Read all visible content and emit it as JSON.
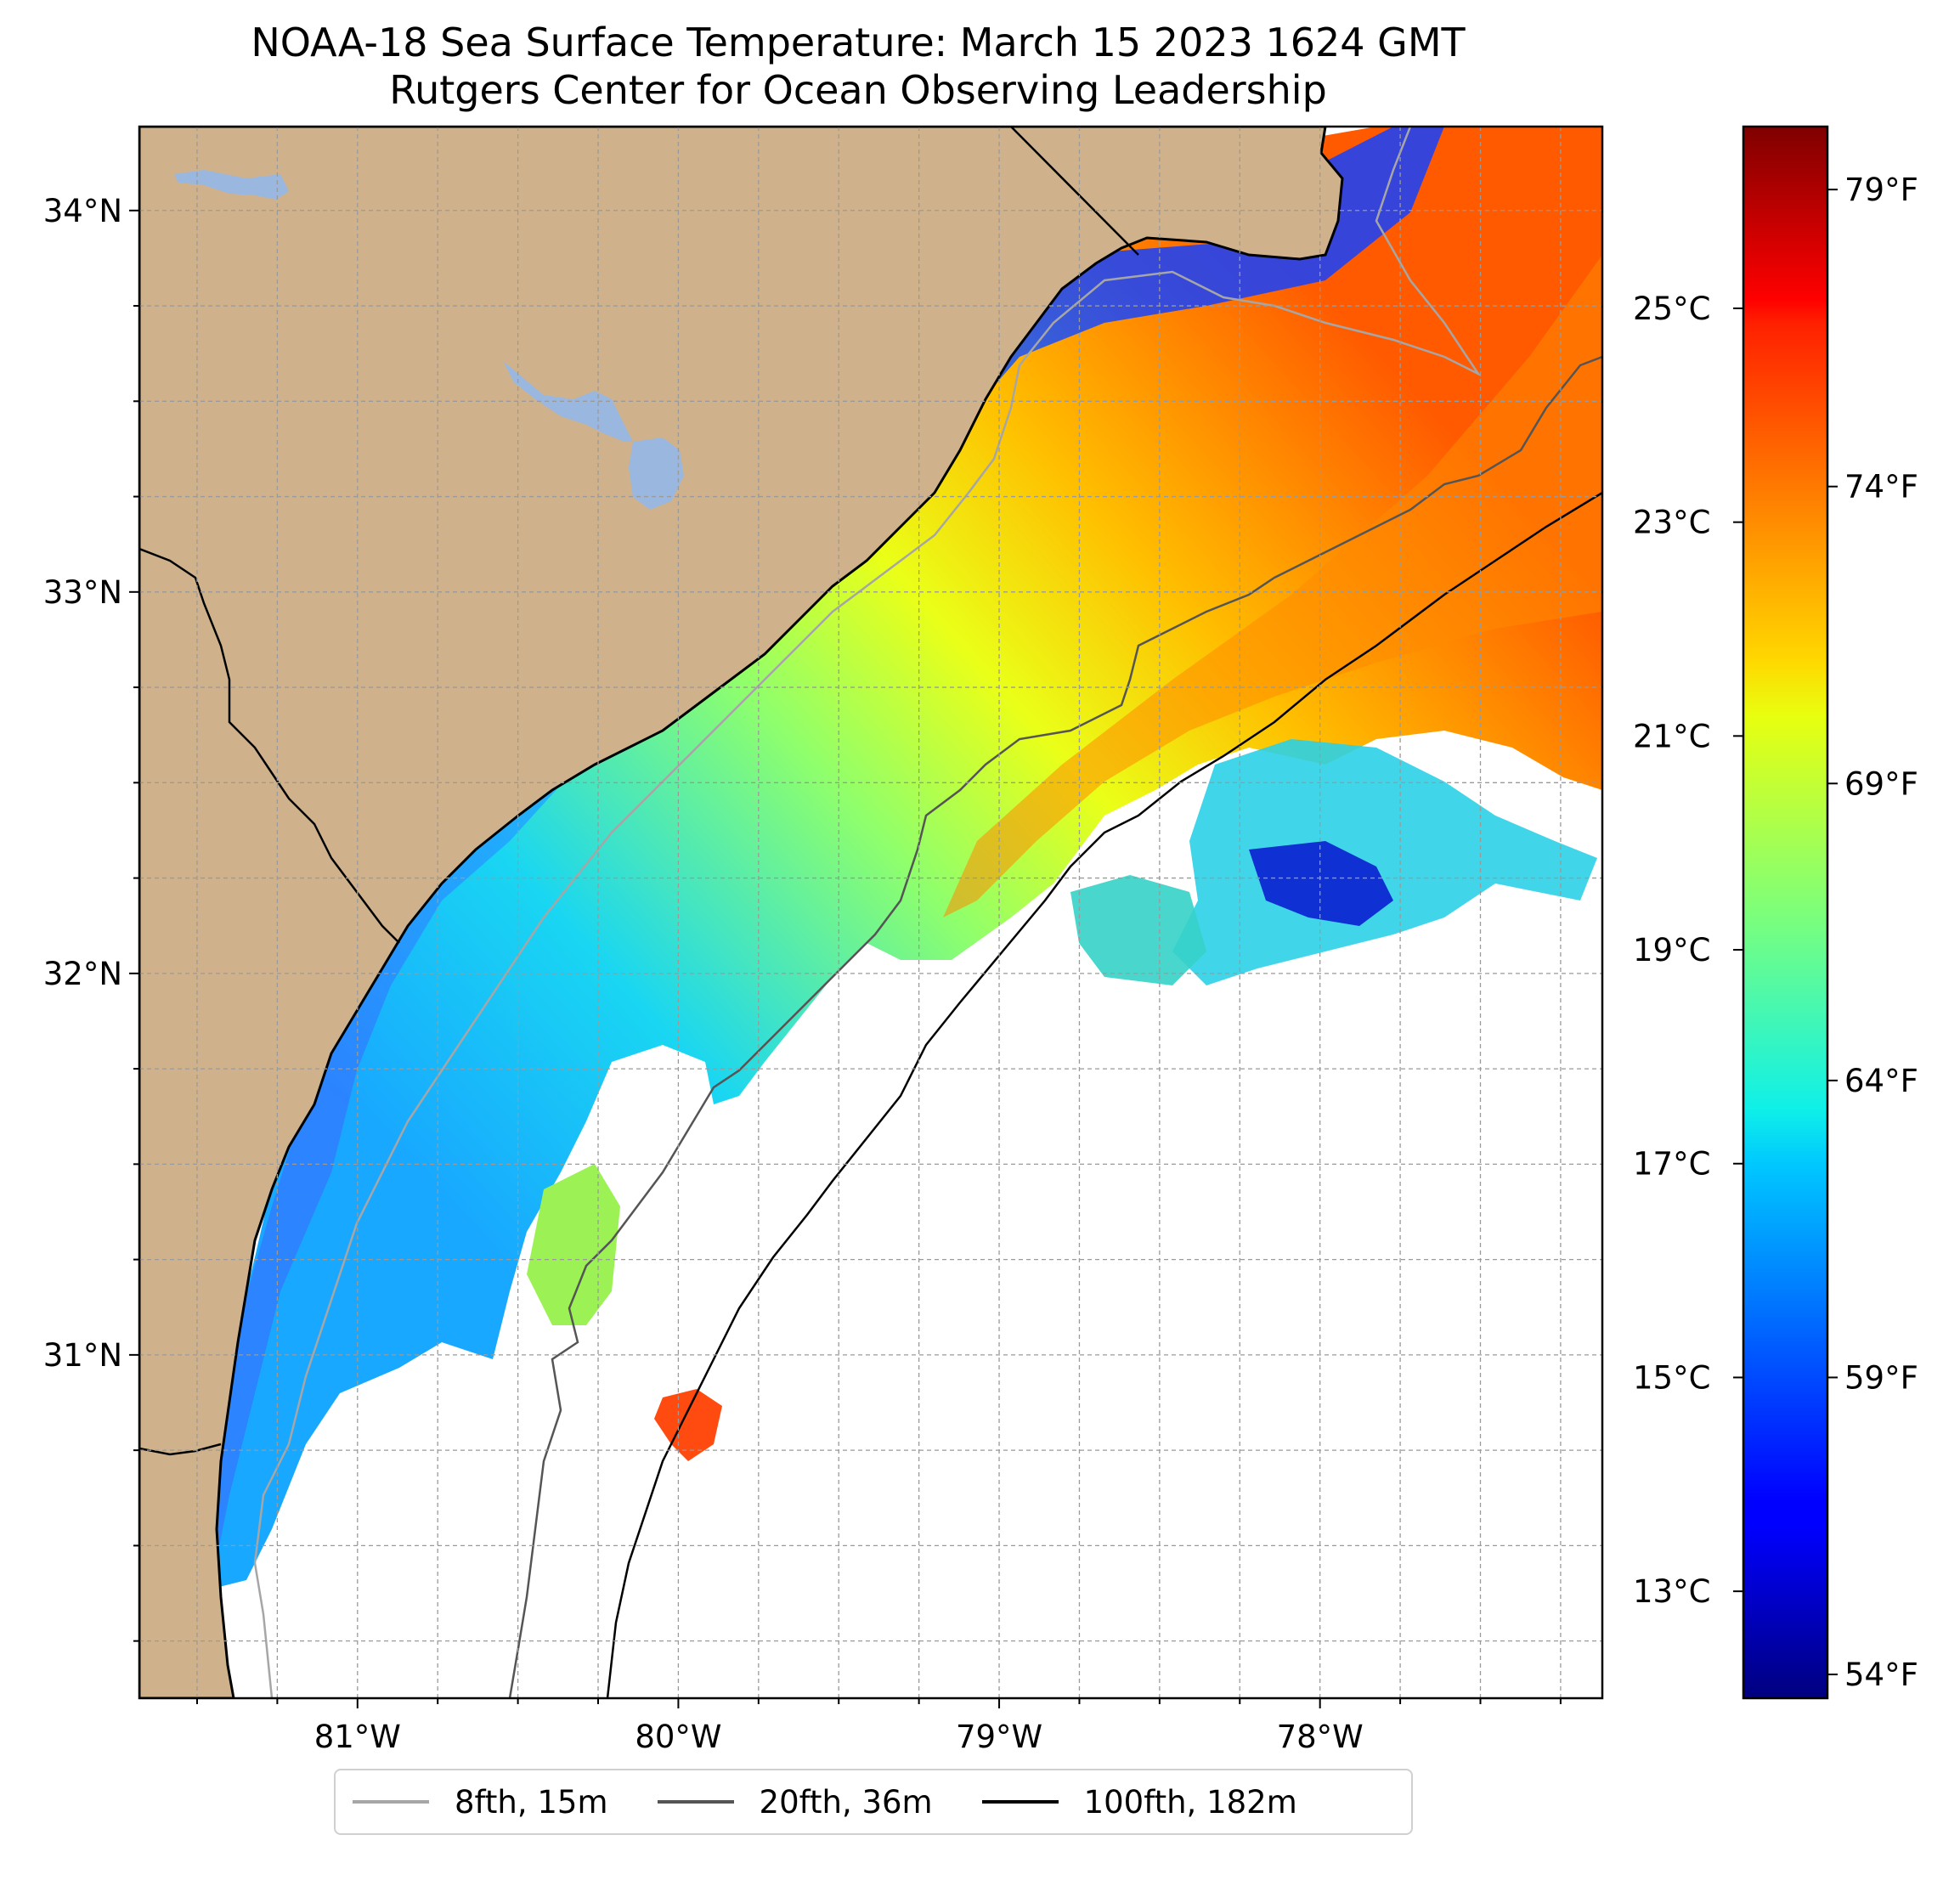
{
  "title": {
    "line1": "NOAA-18 Sea Surface Temperature: March 15 2023 1624 GMT",
    "line2": "Rutgers Center for Ocean Observing Leadership"
  },
  "map": {
    "lat_range": [
      30.1,
      34.22
    ],
    "lon_range": [
      -81.68,
      -77.12
    ],
    "lat_ticks": [
      {
        "value": 31,
        "label": "31°N"
      },
      {
        "value": 32,
        "label": "32°N"
      },
      {
        "value": 33,
        "label": "33°N"
      },
      {
        "value": 34,
        "label": "34°N"
      }
    ],
    "lon_ticks": [
      {
        "value": -81,
        "label": "81°W"
      },
      {
        "value": -80,
        "label": "80°W"
      },
      {
        "value": -79,
        "label": "79°W"
      },
      {
        "value": -78,
        "label": "78°W"
      }
    ],
    "grid": true,
    "land_color": "#cfb28b",
    "lake_color": "#9ab7e0",
    "ocean_color": "#ffffff"
  },
  "colorbar": {
    "colormap": "jet",
    "range_celsius": [
      12.0,
      26.7
    ],
    "celsius_ticks": [
      {
        "value": 13,
        "label": "13°C"
      },
      {
        "value": 15,
        "label": "15°C"
      },
      {
        "value": 17,
        "label": "17°C"
      },
      {
        "value": 19,
        "label": "19°C"
      },
      {
        "value": 21,
        "label": "21°C"
      },
      {
        "value": 23,
        "label": "23°C"
      },
      {
        "value": 25,
        "label": "25°C"
      }
    ],
    "fahrenheit_ticks": [
      {
        "value": 54,
        "label": "54°F"
      },
      {
        "value": 59,
        "label": "59°F"
      },
      {
        "value": 64,
        "label": "64°F"
      },
      {
        "value": 69,
        "label": "69°F"
      },
      {
        "value": 74,
        "label": "74°F"
      },
      {
        "value": 79,
        "label": "79°F"
      }
    ]
  },
  "legend": {
    "placement": "bottom-center",
    "items": [
      {
        "label": "8fth, 15m",
        "color": "#a6a6a6"
      },
      {
        "label": "20fth, 36m",
        "color": "#555555"
      },
      {
        "label": "100fth, 182m",
        "color": "#000000"
      }
    ]
  }
}
